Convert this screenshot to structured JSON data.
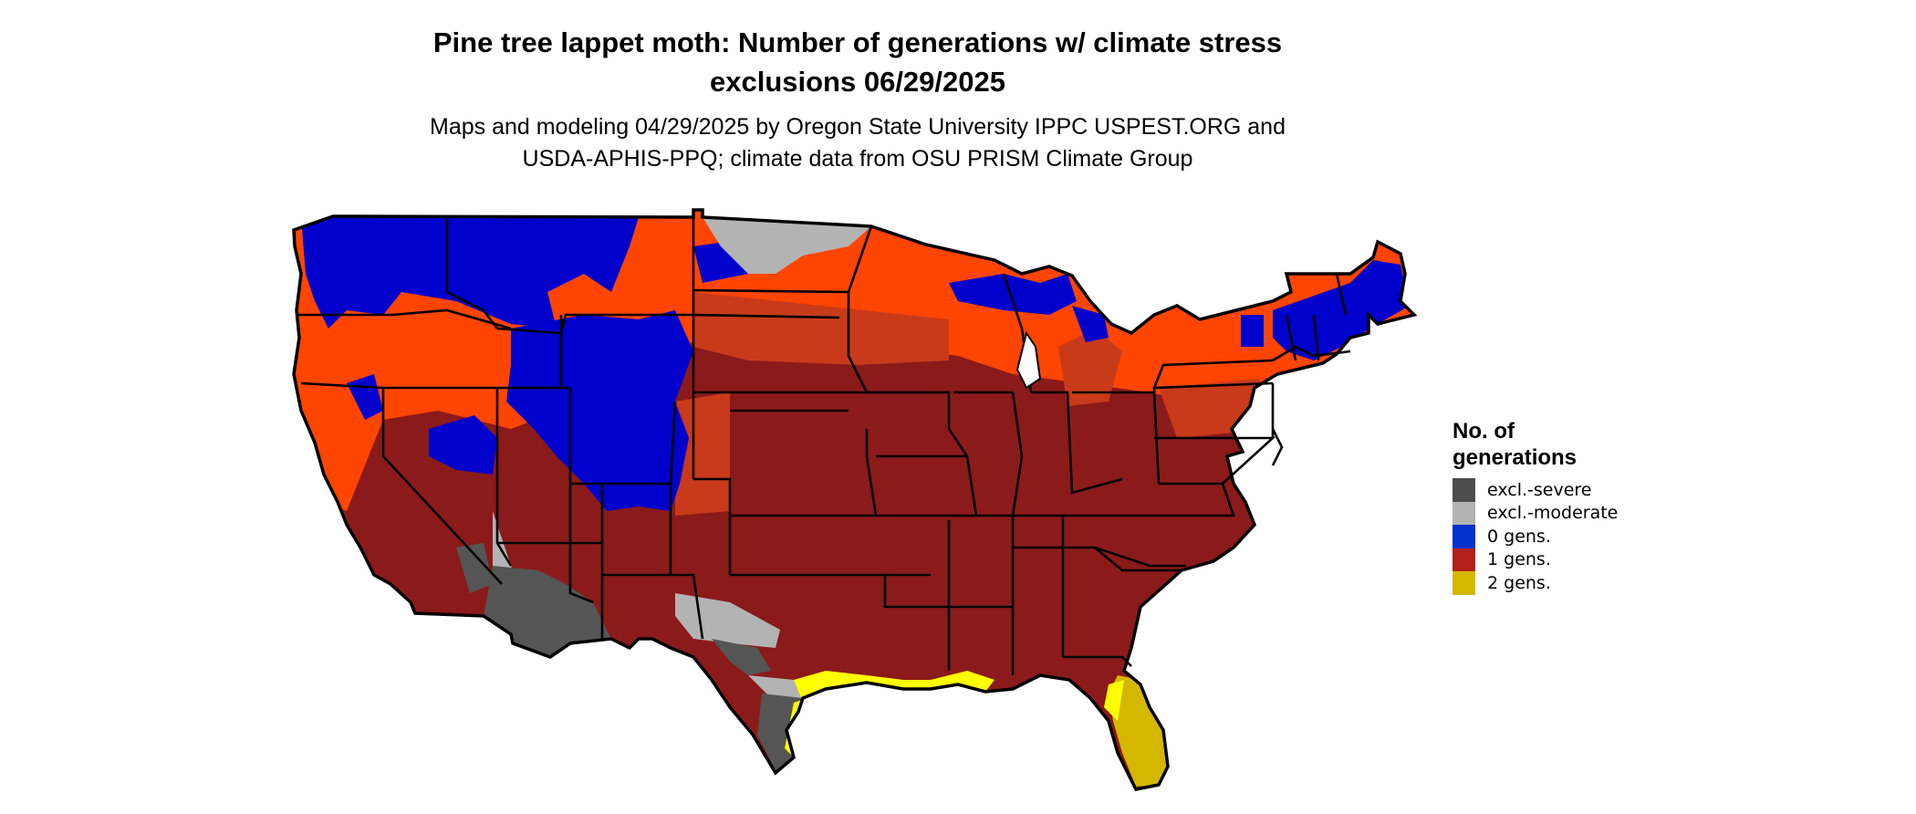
{
  "title_line1": "Pine tree lappet moth: Number of generations w/ climate stress",
  "title_line2": "exclusions 06/29/2025",
  "subtitle_line1": "Maps and modeling 04/29/2025 by Oregon State University IPPC USPEST.ORG and",
  "subtitle_line2": "USDA-APHIS-PPQ; climate data from OSU PRISM Climate Group",
  "legend": {
    "title_line1": "No. of",
    "title_line2": "generations",
    "items": [
      {
        "label": "excl.-severe",
        "color": "#4d4d4d"
      },
      {
        "label": "excl.-moderate",
        "color": "#b3b3b3"
      },
      {
        "label": "0 gens.",
        "color": "#0033cc"
      },
      {
        "label": "1 gens.",
        "color": "#b22018"
      },
      {
        "label": "2 gens.",
        "color": "#d4b800"
      }
    ]
  },
  "map_colors": {
    "severe": "#555555",
    "moderate": "#b3b3b3",
    "zero": "#0000cc",
    "one_dark": "#8b1a1a",
    "one_mid": "#c83a1a",
    "one_light": "#ff4500",
    "two": "#d4b800",
    "two_bright": "#ffff00"
  }
}
